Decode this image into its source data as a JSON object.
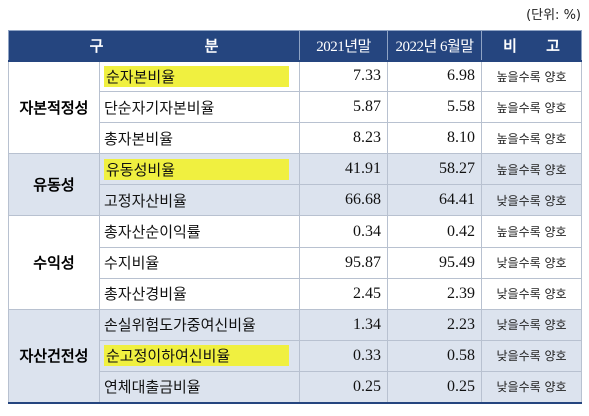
{
  "unit_label": "(단위: %)",
  "header": {
    "category": "구 분",
    "col_2021": "2021년말",
    "col_2022": "2022년 6월말",
    "note": "비 고"
  },
  "rows": [
    {
      "group": "자본적정성",
      "item": "순자본비율",
      "v2021": "7.33",
      "v2022": "6.98",
      "note": "높을수록 양호",
      "highlight": true
    },
    {
      "group": "",
      "item": "단순자기자본비율",
      "v2021": "5.87",
      "v2022": "5.58",
      "note": "높을수록 양호",
      "highlight": false
    },
    {
      "group": "",
      "item": "총자본비율",
      "v2021": "8.23",
      "v2022": "8.10",
      "note": "높을수록 양호",
      "highlight": false
    },
    {
      "group": "유동성",
      "item": "유동성비율",
      "v2021": "41.91",
      "v2022": "58.27",
      "note": "높을수록 양호",
      "highlight": true
    },
    {
      "group": "",
      "item": "고정자산비율",
      "v2021": "66.68",
      "v2022": "64.41",
      "note": "낮을수록 양호",
      "highlight": false
    },
    {
      "group": "수익성",
      "item": "총자산순이익률",
      "v2021": "0.34",
      "v2022": "0.42",
      "note": "높을수록 양호",
      "highlight": false
    },
    {
      "group": "",
      "item": "수지비율",
      "v2021": "95.87",
      "v2022": "95.49",
      "note": "낮을수록 양호",
      "highlight": false
    },
    {
      "group": "",
      "item": "총자산경비율",
      "v2021": "2.45",
      "v2022": "2.39",
      "note": "낮을수록 양호",
      "highlight": false
    },
    {
      "group": "자산건전성",
      "item": "손실위험도가중여신비율",
      "v2021": "1.34",
      "v2022": "2.23",
      "note": "낮을수록 양호",
      "highlight": false
    },
    {
      "group": "",
      "item": "순고정이하여신비율",
      "v2021": "0.33",
      "v2022": "0.58",
      "note": "낮을수록 양호",
      "highlight": true
    },
    {
      "group": "",
      "item": "연체대출금비율",
      "v2021": "0.25",
      "v2022": "0.25",
      "note": "낮을수록 양호",
      "highlight": false
    }
  ]
}
